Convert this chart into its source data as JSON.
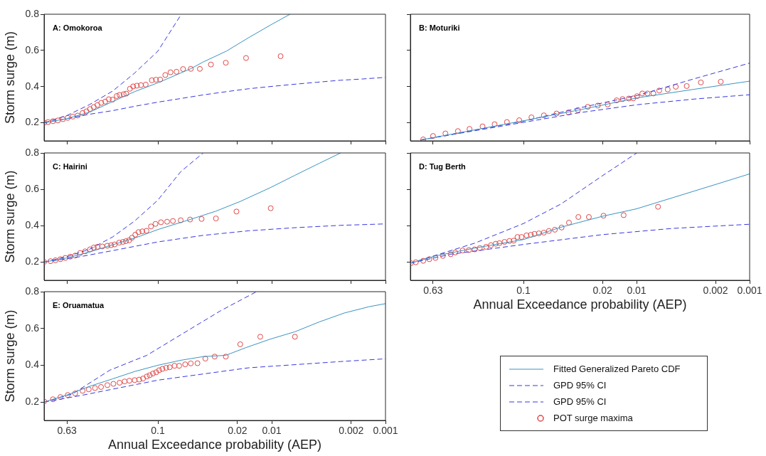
{
  "chart_data": [
    {
      "type": "line",
      "title": "A: Omokoroa",
      "ylabel": "Storm surge (m)",
      "xlim": [
        1,
        0.001
      ],
      "xticks": [
        0.63,
        0.1,
        0.02,
        0.01,
        0.002,
        0.001
      ],
      "ylim": [
        0.1,
        0.8
      ],
      "yticks": [
        0.2,
        0.4,
        0.6,
        0.8
      ],
      "log": "x",
      "tick_labels": "y",
      "series": [
        {
          "line_style": "solid",
          "color": "#3a93c3",
          "x": [
            1,
            0.63,
            0.4,
            0.25,
            0.16,
            0.1,
            0.063,
            0.051,
            0.04,
            0.025,
            0.016,
            0.01,
            0.0069
          ],
          "values": [
            0.2,
            0.223,
            0.258,
            0.317,
            0.372,
            0.421,
            0.475,
            0.5,
            0.536,
            0.596,
            0.67,
            0.744,
            0.8
          ]
        },
        {
          "line_style": "dashed",
          "color": "#3838e0",
          "x": [
            1,
            0.63,
            0.4,
            0.25,
            0.16,
            0.1,
            0.0622
          ],
          "values": [
            0.2,
            0.24,
            0.3,
            0.375,
            0.475,
            0.596,
            0.8
          ]
        },
        {
          "line_style": "dashed",
          "color": "#3838e0",
          "x": [
            1,
            0.63,
            0.4,
            0.25,
            0.16,
            0.1,
            0.063,
            0.04,
            0.025,
            0.016,
            0.01,
            0.0063,
            0.004,
            0.0025,
            0.0016,
            0.001
          ],
          "values": [
            0.2,
            0.223,
            0.247,
            0.267,
            0.291,
            0.314,
            0.334,
            0.354,
            0.372,
            0.388,
            0.401,
            0.413,
            0.424,
            0.435,
            0.442,
            0.451
          ]
        },
        {
          "type": "scatter",
          "marker": "circle",
          "color": "#e04848",
          "x": [
            1.0,
            0.923,
            0.835,
            0.756,
            0.684,
            0.62,
            0.56,
            0.507,
            0.459,
            0.425,
            0.395,
            0.366,
            0.34,
            0.315,
            0.29,
            0.27,
            0.25,
            0.23,
            0.217,
            0.2,
            0.19,
            0.176,
            0.165,
            0.153,
            0.141,
            0.128,
            0.113,
            0.104,
            0.0955,
            0.0861,
            0.0775,
            0.0686,
            0.0601,
            0.0514,
            0.0428,
            0.0342,
            0.0253,
            0.0168,
            0.00835
          ],
          "values": [
            0.2,
            0.204,
            0.209,
            0.213,
            0.22,
            0.227,
            0.234,
            0.24,
            0.254,
            0.263,
            0.276,
            0.287,
            0.298,
            0.31,
            0.317,
            0.33,
            0.328,
            0.348,
            0.354,
            0.358,
            0.361,
            0.388,
            0.401,
            0.405,
            0.408,
            0.411,
            0.435,
            0.438,
            0.439,
            0.464,
            0.479,
            0.482,
            0.497,
            0.498,
            0.498,
            0.522,
            0.532,
            0.558,
            0.568
          ]
        }
      ]
    },
    {
      "type": "line",
      "title": "B: Moturiki",
      "xlim": [
        1,
        0.001
      ],
      "xticks": [
        0.63,
        0.1,
        0.02,
        0.01,
        0.002,
        0.001
      ],
      "ylim": [
        0.1,
        0.8
      ],
      "yticks": [
        0.2,
        0.4,
        0.6,
        0.8
      ],
      "log": "x",
      "tick_labels": false,
      "series": [
        {
          "line_style": "solid",
          "color": "#3a93c3",
          "x": [
            0.81,
            0.098,
            0.031,
            0.0098,
            0.0031,
            0.001
          ],
          "values": [
            0.105,
            0.212,
            0.273,
            0.338,
            0.385,
            0.43
          ]
        },
        {
          "line_style": "dashed",
          "color": "#3838e0",
          "x": [
            0.81,
            0.098,
            0.031,
            0.0098,
            0.0031,
            0.001
          ],
          "values": [
            0.105,
            0.21,
            0.284,
            0.351,
            0.443,
            0.53
          ]
        },
        {
          "line_style": "dashed",
          "color": "#3838e0",
          "x": [
            0.81,
            0.098,
            0.031,
            0.0098,
            0.0031,
            0.001
          ],
          "values": [
            0.105,
            0.203,
            0.257,
            0.3,
            0.331,
            0.355
          ]
        },
        {
          "type": "scatter",
          "marker": "circle",
          "color": "#e04848",
          "x": [
            0.77,
            0.63,
            0.49,
            0.38,
            0.3,
            0.23,
            0.18,
            0.14,
            0.109,
            0.085,
            0.066,
            0.051,
            0.04,
            0.033,
            0.027,
            0.022,
            0.018,
            0.015,
            0.0133,
            0.0117,
            0.0107,
            0.0099,
            0.0089,
            0.008,
            0.0071,
            0.0063,
            0.0053,
            0.0045,
            0.0036,
            0.0027,
            0.0018
          ],
          "values": [
            0.108,
            0.127,
            0.141,
            0.154,
            0.166,
            0.18,
            0.192,
            0.204,
            0.214,
            0.23,
            0.241,
            0.251,
            0.257,
            0.27,
            0.288,
            0.295,
            0.301,
            0.324,
            0.331,
            0.334,
            0.335,
            0.347,
            0.362,
            0.362,
            0.362,
            0.378,
            0.384,
            0.399,
            0.403,
            0.423,
            0.427
          ]
        }
      ]
    },
    {
      "type": "line",
      "title": "C: Hairini",
      "ylabel": "Storm surge (m)",
      "xlim": [
        1,
        0.001
      ],
      "xticks": [
        0.63,
        0.1,
        0.02,
        0.01,
        0.002,
        0.001
      ],
      "ylim": [
        0.1,
        0.8
      ],
      "yticks": [
        0.2,
        0.4,
        0.6,
        0.8
      ],
      "log": "x",
      "tick_labels": "y",
      "series": [
        {
          "line_style": "solid",
          "color": "#3a93c3",
          "x": [
            1,
            0.63,
            0.4,
            0.25,
            0.15,
            0.1,
            0.0522,
            0.0309,
            0.0188,
            0.0103,
            0.00625,
            0.00379,
            0.00248
          ],
          "values": [
            0.2,
            0.223,
            0.255,
            0.295,
            0.338,
            0.379,
            0.434,
            0.48,
            0.534,
            0.609,
            0.677,
            0.744,
            0.8
          ]
        },
        {
          "line_style": "dashed",
          "color": "#3838e0",
          "x": [
            1,
            0.63,
            0.4,
            0.25,
            0.16,
            0.1,
            0.063,
            0.04
          ],
          "values": [
            0.2,
            0.23,
            0.27,
            0.338,
            0.426,
            0.541,
            0.697,
            0.8
          ]
        },
        {
          "line_style": "dashed",
          "color": "#3838e0",
          "x": [
            1,
            0.48,
            0.25,
            0.1,
            0.04,
            0.016,
            0.0063,
            0.0025,
            0.001
          ],
          "values": [
            0.2,
            0.23,
            0.263,
            0.311,
            0.347,
            0.372,
            0.389,
            0.402,
            0.41
          ]
        },
        {
          "type": "scatter",
          "marker": "circle",
          "color": "#e04848",
          "x": [
            1.0,
            0.878,
            0.795,
            0.719,
            0.651,
            0.589,
            0.533,
            0.482,
            0.436,
            0.395,
            0.366,
            0.34,
            0.308,
            0.278,
            0.258,
            0.24,
            0.219,
            0.203,
            0.191,
            0.179,
            0.169,
            0.158,
            0.148,
            0.137,
            0.126,
            0.115,
            0.105,
            0.094,
            0.083,
            0.0738,
            0.063,
            0.0522,
            0.0413,
            0.0309,
            0.0204,
            0.0102
          ],
          "values": [
            0.201,
            0.205,
            0.21,
            0.216,
            0.223,
            0.23,
            0.236,
            0.25,
            0.259,
            0.27,
            0.28,
            0.284,
            0.286,
            0.29,
            0.293,
            0.297,
            0.307,
            0.311,
            0.315,
            0.32,
            0.334,
            0.351,
            0.365,
            0.369,
            0.372,
            0.396,
            0.41,
            0.419,
            0.422,
            0.426,
            0.43,
            0.434,
            0.437,
            0.44,
            0.478,
            0.496
          ]
        }
      ]
    },
    {
      "type": "line",
      "title": "D: Tug Berth",
      "xlabel": "Annual Exceedance probability (AEP)",
      "xlim": [
        1,
        0.001
      ],
      "xticks": [
        0.63,
        0.1,
        0.02,
        0.01,
        0.002,
        0.001
      ],
      "ylim": [
        0.1,
        0.8
      ],
      "yticks": [
        0.2,
        0.4,
        0.6,
        0.8
      ],
      "log": "x",
      "tick_labels": "x",
      "series": [
        {
          "line_style": "solid",
          "color": "#3a93c3",
          "x": [
            1,
            0.6,
            0.27,
            0.1,
            0.0464,
            0.02,
            0.01,
            0.00485,
            0.00197,
            0.001
          ],
          "values": [
            0.194,
            0.234,
            0.277,
            0.324,
            0.392,
            0.452,
            0.493,
            0.553,
            0.628,
            0.685
          ]
        },
        {
          "line_style": "dashed",
          "color": "#3838e0",
          "x": [
            1,
            0.6,
            0.27,
            0.1,
            0.0464,
            0.02,
            0.00995
          ],
          "values": [
            0.194,
            0.237,
            0.304,
            0.412,
            0.52,
            0.675,
            0.8
          ]
        },
        {
          "line_style": "dashed",
          "color": "#3838e0",
          "x": [
            1,
            0.44,
            0.1,
            0.02,
            0.00485,
            0.001
          ],
          "values": [
            0.194,
            0.243,
            0.297,
            0.351,
            0.385,
            0.408
          ]
        },
        {
          "type": "scatter",
          "marker": "circle",
          "color": "#e04848",
          "x": [
            0.99,
            0.895,
            0.77,
            0.68,
            0.6,
            0.516,
            0.44,
            0.401,
            0.345,
            0.304,
            0.27,
            0.243,
            0.214,
            0.194,
            0.176,
            0.163,
            0.147,
            0.133,
            0.122,
            0.113,
            0.104,
            0.094,
            0.086,
            0.0799,
            0.0731,
            0.066,
            0.0596,
            0.0528,
            0.046,
            0.0396,
            0.0327,
            0.0264,
            0.0196,
            0.013,
            0.00646
          ],
          "values": [
            0.194,
            0.199,
            0.207,
            0.216,
            0.223,
            0.234,
            0.243,
            0.253,
            0.264,
            0.266,
            0.27,
            0.277,
            0.284,
            0.293,
            0.301,
            0.304,
            0.311,
            0.316,
            0.318,
            0.338,
            0.338,
            0.347,
            0.35,
            0.355,
            0.358,
            0.362,
            0.371,
            0.378,
            0.39,
            0.417,
            0.448,
            0.448,
            0.455,
            0.458,
            0.504
          ]
        }
      ]
    },
    {
      "type": "line",
      "title": "E: Oruamatua",
      "xlabel": "Annual Exceedance probability (AEP)",
      "ylabel": "Storm surge (m)",
      "xlim": [
        1,
        0.001
      ],
      "xticks": [
        0.63,
        0.1,
        0.02,
        0.01,
        0.002,
        0.001
      ],
      "ylim": [
        0.1,
        0.8
      ],
      "yticks": [
        0.2,
        0.4,
        0.6,
        0.8
      ],
      "log": "x",
      "legend": "right",
      "series": [
        {
          "name": "Fitted Generalized Pareto CDF",
          "line_style": "solid",
          "color": "#3a93c3",
          "x": [
            1,
            0.63,
            0.4,
            0.25,
            0.16,
            0.1,
            0.063,
            0.04,
            0.0253,
            0.017,
            0.0103,
            0.00625,
            0.0038,
            0.0023,
            0.0014,
            0.001
          ],
          "values": [
            0.2,
            0.238,
            0.285,
            0.326,
            0.366,
            0.4,
            0.427,
            0.447,
            0.454,
            0.495,
            0.542,
            0.582,
            0.636,
            0.684,
            0.718,
            0.735
          ]
        },
        {
          "name": "GPD 95% CI",
          "line_style": "dashed",
          "color": "#3838e0",
          "x": [
            1,
            0.56,
            0.265,
            0.125,
            0.076,
            0.0461,
            0.028,
            0.0136
          ],
          "values": [
            0.2,
            0.245,
            0.373,
            0.454,
            0.535,
            0.616,
            0.697,
            0.8
          ]
        },
        {
          "name": "GPD 95% CI",
          "line_style": "dashed",
          "color": "#3838e0",
          "x": [
            1,
            0.48,
            0.1,
            0.016,
            0.0025,
            0.001
          ],
          "values": [
            0.2,
            0.235,
            0.319,
            0.386,
            0.42,
            0.435
          ]
        },
        {
          "name": "POT surge maxima",
          "type": "scatter",
          "marker": "circle",
          "color": "#e04848",
          "x": [
            1.0,
            0.835,
            0.719,
            0.62,
            0.533,
            0.459,
            0.405,
            0.357,
            0.316,
            0.278,
            0.246,
            0.217,
            0.196,
            0.178,
            0.16,
            0.146,
            0.135,
            0.125,
            0.118,
            0.1106,
            0.1035,
            0.0975,
            0.0913,
            0.0846,
            0.0787,
            0.0714,
            0.065,
            0.0576,
            0.0514,
            0.0449,
            0.0383,
            0.0317,
            0.0253,
            0.0189,
            0.0126,
            0.00625
          ],
          "values": [
            0.203,
            0.215,
            0.227,
            0.238,
            0.247,
            0.261,
            0.269,
            0.276,
            0.282,
            0.292,
            0.299,
            0.305,
            0.312,
            0.316,
            0.319,
            0.322,
            0.328,
            0.339,
            0.346,
            0.355,
            0.362,
            0.373,
            0.38,
            0.386,
            0.389,
            0.397,
            0.397,
            0.405,
            0.41,
            0.411,
            0.436,
            0.447,
            0.447,
            0.514,
            0.555,
            0.555
          ]
        }
      ]
    }
  ]
}
